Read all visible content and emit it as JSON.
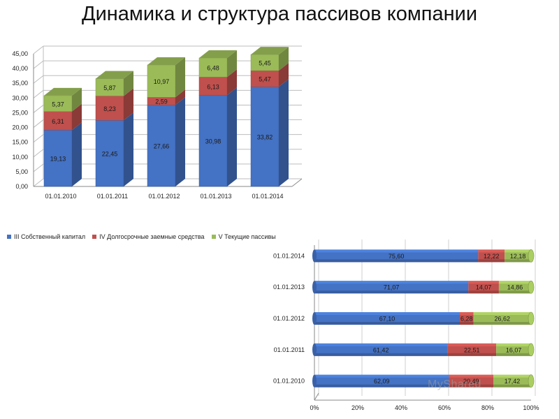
{
  "title": "Динамика и структура пассивов компании",
  "colors": {
    "equity": "#4472C4",
    "longterm": "#C0504D",
    "current": "#9BBB59"
  },
  "legend": [
    {
      "key": "equity",
      "label": "III Собственный капитал"
    },
    {
      "key": "longterm",
      "label": "IV  Долгосрочные  заемные средства"
    },
    {
      "key": "current",
      "label": "V Текущие пассивы"
    }
  ],
  "watermark": "MyShared",
  "chart_data": [
    {
      "type": "bar",
      "stacked": true,
      "categories": [
        "01.01.2010",
        "01.01.2011",
        "01.01.2012",
        "01.01.2013",
        "01.01.2014"
      ],
      "series": [
        {
          "name": "III Собственный капитал",
          "key": "equity",
          "values": [
            19.13,
            22.45,
            27.66,
            30.98,
            33.82
          ]
        },
        {
          "name": "IV  Долгосрочные  заемные средства",
          "key": "longterm",
          "values": [
            6.31,
            8.23,
            2.59,
            6.13,
            5.47
          ]
        },
        {
          "name": "V Текущие пассивы",
          "key": "current",
          "values": [
            5.37,
            5.87,
            10.97,
            6.48,
            5.45
          ]
        }
      ],
      "ylim": [
        0,
        45
      ],
      "yticks": [
        "0,00",
        "5,00",
        "10,00",
        "15,00",
        "20,00",
        "25,00",
        "30,00",
        "35,00",
        "40,00",
        "45,00"
      ],
      "grid": true
    },
    {
      "type": "bar",
      "orientation": "horizontal",
      "stacked_percent": true,
      "categories": [
        "01.01.2014",
        "01.01.2013",
        "01.01.2012",
        "01.01.2011",
        "01.01.2010"
      ],
      "series": [
        {
          "name": "III Собственный капитал",
          "key": "equity",
          "values": [
            75.6,
            71.07,
            67.1,
            61.42,
            62.09
          ]
        },
        {
          "name": "IV  Долгосрочные  заемные средства",
          "key": "longterm",
          "values": [
            12.22,
            14.07,
            6.28,
            22.51,
            20.49
          ]
        },
        {
          "name": "V Текущие пассивы",
          "key": "current",
          "values": [
            12.18,
            14.86,
            26.62,
            16.07,
            17.42
          ]
        }
      ],
      "xlim": [
        0,
        100
      ],
      "xticks": [
        "0%",
        "20%",
        "40%",
        "60%",
        "80%",
        "100%"
      ],
      "grid": true
    }
  ]
}
